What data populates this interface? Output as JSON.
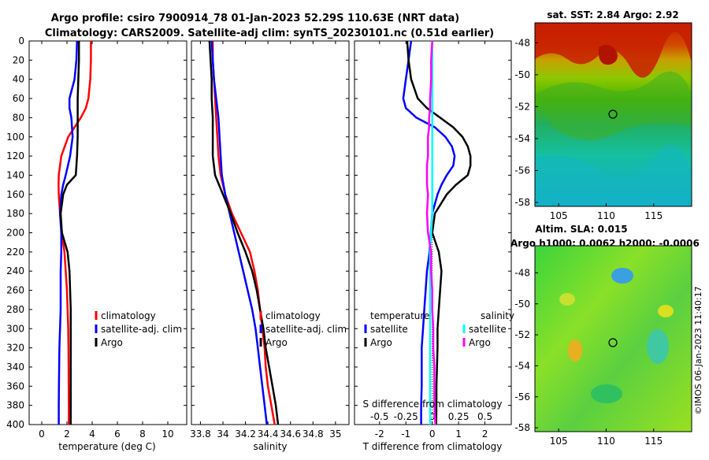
{
  "header": {
    "title_line1": "Argo profile: csiro 7900914_78 01-Jan-2023 52.29S 110.63E (NRT data)",
    "title_line2": "Climatology: CARS2009. Satellite-adj clim: synTS_20230101.nc (0.51d earlier)"
  },
  "watermark": "©IMOS 06-Jan-2023 11:40:17",
  "colors": {
    "climatology": "#ff0000",
    "satellite": "#0000ff",
    "argo": "#000000",
    "cyan": "#00ffff",
    "magenta": "#ff00ff"
  },
  "chart_data": [
    {
      "type": "line",
      "name": "temperature-profile",
      "xlabel": "temperature (deg C)",
      "ylabel": "",
      "xlim": [
        -1,
        11.5
      ],
      "ylim": [
        0,
        400
      ],
      "x_ticks": [
        "0",
        "2",
        "4",
        "6",
        "8",
        "10"
      ],
      "y_ticks": [
        "0",
        "20",
        "40",
        "60",
        "80",
        "100",
        "120",
        "140",
        "160",
        "180",
        "200",
        "220",
        "240",
        "260",
        "280",
        "300",
        "320",
        "340",
        "360",
        "380",
        "400"
      ],
      "legend": [
        "climatology",
        "satellite-adj. clim",
        "Argo"
      ],
      "depth": [
        0,
        20,
        40,
        60,
        70,
        80,
        100,
        120,
        140,
        150,
        160,
        180,
        200,
        220,
        240,
        260,
        280,
        300,
        320,
        340,
        360,
        380,
        400
      ],
      "series": [
        {
          "name": "climatology",
          "values": [
            3.9,
            3.9,
            3.85,
            3.7,
            3.5,
            3.1,
            2.1,
            1.55,
            1.35,
            1.33,
            1.35,
            1.45,
            1.6,
            1.8,
            1.9,
            2.0,
            2.05,
            2.1,
            2.12,
            2.13,
            2.14,
            2.15,
            2.15
          ]
        },
        {
          "name": "satellite-adj. clim",
          "values": [
            2.8,
            2.75,
            2.6,
            2.2,
            2.2,
            2.35,
            2.45,
            2.25,
            1.9,
            1.7,
            1.55,
            1.45,
            1.55,
            1.55,
            1.5,
            1.5,
            1.5,
            1.45,
            1.4,
            1.38,
            1.36,
            1.35,
            1.35
          ]
        },
        {
          "name": "Argo",
          "values": [
            2.95,
            2.95,
            2.9,
            2.85,
            2.85,
            2.85,
            2.85,
            2.8,
            2.7,
            2.0,
            1.7,
            1.5,
            1.6,
            2.05,
            2.2,
            2.25,
            2.3,
            2.3,
            2.3,
            2.3,
            2.3,
            2.3,
            2.3
          ]
        }
      ]
    },
    {
      "type": "line",
      "name": "salinity-profile",
      "xlabel": "salinity",
      "xlim": [
        33.72,
        35.12
      ],
      "ylim": [
        0,
        400
      ],
      "x_ticks": [
        "33.8",
        "34",
        "34.2",
        "34.4",
        "34.6",
        "34.8",
        "35"
      ],
      "legend": [
        "climatology",
        "satellite-adj. clim",
        "Argo"
      ],
      "depth": [
        0,
        20,
        40,
        60,
        80,
        100,
        120,
        140,
        160,
        180,
        200,
        220,
        240,
        260,
        280,
        300,
        320,
        340,
        360,
        380,
        400
      ],
      "series": [
        {
          "name": "climatology",
          "values": [
            33.91,
            33.91,
            33.92,
            33.93,
            33.94,
            33.95,
            33.96,
            33.98,
            34.02,
            34.08,
            34.16,
            34.24,
            34.28,
            34.31,
            34.33,
            34.35,
            34.37,
            34.38,
            34.4,
            34.43,
            34.46
          ]
        },
        {
          "name": "satellite-adj. clim",
          "values": [
            33.9,
            33.91,
            33.92,
            33.94,
            33.96,
            33.97,
            33.98,
            33.99,
            34.02,
            34.06,
            34.1,
            34.14,
            34.18,
            34.22,
            34.26,
            34.29,
            34.31,
            34.33,
            34.35,
            34.37,
            34.39
          ]
        },
        {
          "name": "Argo",
          "values": [
            33.88,
            33.89,
            33.9,
            33.9,
            33.91,
            33.91,
            33.91,
            33.93,
            34.0,
            34.07,
            34.13,
            34.2,
            34.26,
            34.3,
            34.33,
            34.36,
            34.38,
            34.41,
            34.44,
            34.47,
            34.49
          ]
        }
      ]
    },
    {
      "type": "line",
      "name": "difference-profile",
      "xlabel": "T difference from climatology",
      "xlabel_top": "S difference from climatology",
      "xlim": [
        -2.95,
        3.0
      ],
      "ylim": [
        0,
        400
      ],
      "x_ticks": [
        "-2",
        "-1",
        "0",
        "1",
        "2"
      ],
      "s_ticks": [
        "-0.5",
        "-0.25",
        "0",
        "0.25",
        "0.5"
      ],
      "legend_temperature": [
        "temperature",
        "satellite",
        "Argo"
      ],
      "legend_salinity": [
        "salinity",
        "satellite",
        "Argo"
      ],
      "depth": [
        0,
        20,
        40,
        60,
        70,
        80,
        90,
        100,
        110,
        120,
        130,
        140,
        150,
        160,
        180,
        200,
        220,
        240,
        260,
        280,
        300,
        320,
        340,
        360,
        380,
        400
      ],
      "series": [
        {
          "name": "T satellite",
          "values": [
            -0.8,
            -0.9,
            -1.0,
            -1.1,
            -1.0,
            -0.6,
            0.1,
            0.5,
            0.75,
            0.85,
            0.8,
            0.55,
            0.35,
            0.2,
            0.0,
            -0.05,
            -0.1,
            -0.2,
            -0.25,
            -0.3,
            -0.35,
            -0.4,
            -0.4,
            -0.4,
            -0.42,
            -0.42
          ]
        },
        {
          "name": "T Argo",
          "values": [
            -0.95,
            -0.9,
            -0.8,
            -0.55,
            -0.2,
            0.3,
            0.8,
            1.15,
            1.35,
            1.45,
            1.45,
            1.35,
            0.9,
            0.55,
            0.1,
            0.0,
            0.25,
            0.35,
            0.3,
            0.25,
            0.2,
            0.2,
            0.18,
            0.16,
            0.16,
            0.15
          ]
        },
        {
          "name": "S satellite",
          "values": [
            0.0,
            0.0,
            0.0,
            0.0,
            0.0,
            0.0,
            0.0,
            0.0,
            0.0,
            0.0,
            0.0,
            0.0,
            0.0,
            0.0,
            0.0,
            -0.01,
            -0.02,
            -0.02,
            -0.02,
            -0.02,
            -0.02,
            -0.02,
            -0.02,
            -0.02,
            -0.02,
            -0.02
          ]
        },
        {
          "name": "S Argo",
          "values": [
            0.0,
            -0.01,
            -0.01,
            -0.02,
            -0.02,
            -0.03,
            -0.03,
            -0.04,
            -0.04,
            -0.04,
            -0.05,
            -0.05,
            -0.05,
            -0.04,
            -0.05,
            -0.04,
            -0.01,
            -0.01,
            0.0,
            0.0,
            0.01,
            0.01,
            0.02,
            0.02,
            0.02,
            0.03
          ]
        }
      ]
    },
    {
      "type": "heatmap",
      "name": "sst-map",
      "title": "sat. SST: 2.84 Argo: 2.92",
      "x_ticks": [
        "105",
        "110",
        "115"
      ],
      "y_ticks": [
        "-48",
        "-50",
        "-52",
        "-54",
        "-56",
        "-58"
      ],
      "marker": {
        "lon": 110.63,
        "lat": -52.29
      }
    },
    {
      "type": "heatmap",
      "name": "sla-map",
      "title_line1": "Altim. SLA: 0.015",
      "title_line2": "Argo h1000: 0.0062 h2000: -0.0006",
      "x_ticks": [
        "105",
        "110",
        "115"
      ],
      "y_ticks": [
        "-48",
        "-50",
        "-52",
        "-54",
        "-56",
        "-58"
      ],
      "marker": {
        "lon": 110.63,
        "lat": -52.29
      }
    }
  ]
}
